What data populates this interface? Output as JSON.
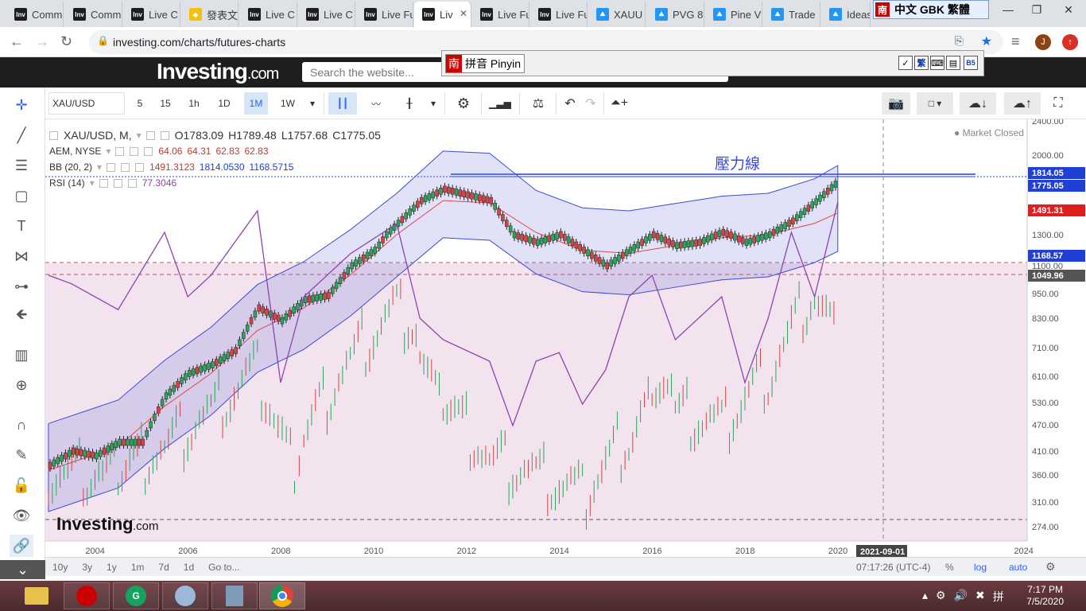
{
  "browser": {
    "tabs": [
      {
        "label": "Comm",
        "favicon": "investing-icon"
      },
      {
        "label": "Comm",
        "favicon": "investing-icon"
      },
      {
        "label": "Live C",
        "favicon": "investing-icon"
      },
      {
        "label": "發表文",
        "favicon": "diamond-icon"
      },
      {
        "label": "Live C",
        "favicon": "investing-icon"
      },
      {
        "label": "Live C",
        "favicon": "investing-icon"
      },
      {
        "label": "Live Fu",
        "favicon": "investing-icon"
      },
      {
        "label": "Liv",
        "favicon": "investing-icon"
      },
      {
        "label": "Live Fu",
        "favicon": "investing-icon"
      },
      {
        "label": "Live Fu",
        "favicon": "investing-icon"
      },
      {
        "label": "XAUU",
        "favicon": "tradingview-icon"
      },
      {
        "label": "PVG 8",
        "favicon": "tradingview-icon"
      },
      {
        "label": "Pine V",
        "favicon": "tradingview-icon"
      },
      {
        "label": "Trade",
        "favicon": "tradingview-icon"
      },
      {
        "label": "Ideas",
        "favicon": "tradingview-icon"
      }
    ],
    "url": "investing.com/charts/futures-charts",
    "profile_initial": "J",
    "ime_top": {
      "nan": "南",
      "text": "中文 GBK 繁體"
    },
    "pinyin_bar": {
      "nan": "南",
      "label": "拼音 Pinyin",
      "fan": "繁",
      "b5": "B5"
    }
  },
  "site": {
    "logo_main": "Investing",
    "logo_suffix": ".com",
    "search_placeholder": "Search the website..."
  },
  "toolbar": {
    "symbol": "XAU/USD",
    "intervals": [
      "5",
      "15",
      "1h",
      "1D",
      "1M",
      "1W"
    ],
    "active_interval": "1M"
  },
  "legend": {
    "main": {
      "symbol": "XAU/USD, M,",
      "o": "O1783.09",
      "h": "H1789.48",
      "l": "L1757.68",
      "c": "C1775.05"
    },
    "aem": {
      "label": "AEM, NYSE",
      "values": [
        "64.06",
        "64.31",
        "62.83",
        "62.83"
      ]
    },
    "bb": {
      "label": "BB (20, 2)",
      "values": [
        "1491.3123",
        "1814.0530",
        "1168.5715"
      ]
    },
    "rsi": {
      "label": "RSI (14)",
      "value": "77.3046"
    },
    "market_status": "Market Closed"
  },
  "chart_data": {
    "type": "line",
    "title": "XAU/USD, M,",
    "annotation": "壓力線",
    "y_ticks": [
      "2400.00",
      "2000.00",
      "1300.00",
      "1100.00",
      "950.00",
      "830.00",
      "710.00",
      "610.00",
      "530.00",
      "470.00",
      "410.00",
      "360.00",
      "310.00",
      "274.00"
    ],
    "x_ticks": [
      "2004",
      "2006",
      "2008",
      "2010",
      "2012",
      "2014",
      "2016",
      "2018",
      "2020",
      "2024"
    ],
    "crosshair_date": "2021-09-01",
    "price_labels": [
      {
        "value": "1814.05",
        "color": "#1f3fd6"
      },
      {
        "value": "1775.05",
        "color": "#1f3fd6"
      },
      {
        "value": "1491.31",
        "color": "#e01e1e"
      },
      {
        "value": "1168.57",
        "color": "#1f3fd6"
      },
      {
        "value": "1049.96",
        "color": "#555555"
      }
    ],
    "series": [
      {
        "name": "XAU/USD",
        "x": [
          2003.5,
          2004,
          2004.5,
          2005,
          2005.5,
          2006,
          2006.5,
          2007,
          2007.5,
          2008,
          2008.5,
          2009,
          2009.5,
          2010,
          2010.5,
          2011,
          2011.5,
          2012,
          2012.5,
          2013,
          2013.5,
          2014,
          2014.5,
          2015,
          2015.5,
          2016,
          2016.5,
          2017,
          2017.5,
          2018,
          2018.5,
          2019,
          2019.5,
          2020,
          2020.5
        ],
        "values": [
          380,
          410,
          400,
          430,
          430,
          550,
          620,
          650,
          700,
          880,
          820,
          920,
          940,
          1100,
          1200,
          1400,
          1600,
          1700,
          1650,
          1600,
          1300,
          1250,
          1300,
          1200,
          1100,
          1200,
          1300,
          1230,
          1250,
          1320,
          1250,
          1300,
          1420,
          1590,
          1775
        ]
      },
      {
        "name": "BB (20, 2)",
        "x": [
          2003.5,
          2005,
          2006,
          2007,
          2008,
          2009,
          2010,
          2011,
          2012,
          2013,
          2014,
          2015,
          2016,
          2017,
          2018,
          2019,
          2020,
          2020.5
        ],
        "values": [
          370,
          420,
          520,
          620,
          780,
          880,
          1050,
          1300,
          1600,
          1580,
          1320,
          1200,
          1180,
          1230,
          1280,
          1300,
          1400,
          1491
        ]
      },
      {
        "name": "RSI (14)",
        "x": [
          2003.5,
          2004,
          2005,
          2006,
          2006.5,
          2007,
          2008,
          2008.5,
          2009,
          2010,
          2011,
          2011.5,
          2012,
          2013,
          2013.5,
          2014,
          2014.5,
          2015,
          2015.5,
          2016,
          2016.5,
          2017,
          2018,
          2018.5,
          2019,
          2019.5,
          2020,
          2020.5
        ],
        "values": [
          60,
          58,
          52,
          70,
          55,
          60,
          75,
          35,
          55,
          65,
          72,
          50,
          45,
          40,
          25,
          40,
          42,
          30,
          38,
          55,
          60,
          45,
          55,
          35,
          50,
          70,
          55,
          77
        ]
      },
      {
        "name": "AEM, NYSE",
        "x": [
          2003.5,
          2005,
          2006,
          2007,
          2008,
          2008.8,
          2009,
          2010,
          2011,
          2011.5,
          2012,
          2013,
          2014,
          2015,
          2016,
          2016.5,
          2017,
          2018,
          2019,
          2020,
          2020.5
        ],
        "values": [
          31,
          30,
          37,
          45,
          55,
          32,
          40,
          58,
          70,
          65,
          48,
          34,
          30,
          25,
          40,
          50,
          45,
          42,
          55,
          75,
          62.83
        ]
      }
    ]
  },
  "bottom_bar": {
    "ranges": [
      "10y",
      "3y",
      "1y",
      "1m",
      "7d",
      "1d"
    ],
    "goto": "Go to...",
    "time": "07:17:26 (UTC-4)",
    "percent": "%",
    "log": "log",
    "auto": "auto"
  },
  "taskbar": {
    "time": "7:17 PM",
    "date": "7/5/2020"
  }
}
